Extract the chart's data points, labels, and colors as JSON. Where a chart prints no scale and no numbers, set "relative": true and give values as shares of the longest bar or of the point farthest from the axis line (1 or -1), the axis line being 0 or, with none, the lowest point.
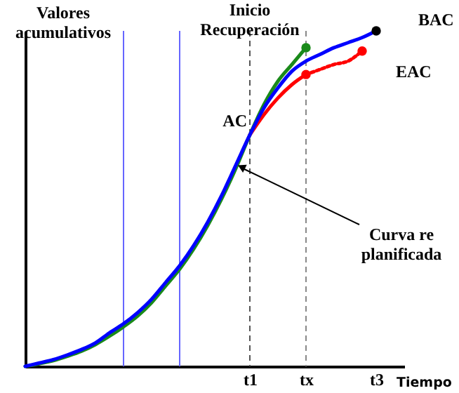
{
  "chart_data": {
    "type": "line",
    "relative": true,
    "xlabel": "Tiempo",
    "ylabel": "Valores acumulativos",
    "categories": [
      null,
      null,
      null,
      null,
      null,
      null,
      null,
      null,
      null,
      null,
      null,
      null,
      null,
      null,
      null,
      null,
      "t1",
      null,
      null,
      null,
      "tx",
      null,
      null,
      null,
      null,
      "t3",
      null,
      null
    ],
    "series": [
      {
        "color": "#1a8a1a",
        "values": [
          0,
          0.008,
          0.017,
          0.03,
          0.045,
          0.065,
          0.09,
          0.118,
          0.15,
          0.19,
          0.24,
          0.29,
          0.35,
          0.42,
          0.5,
          0.59,
          0.69,
          0.78,
          0.85,
          0.9,
          0.95,
          null,
          null,
          null,
          null,
          null,
          null,
          null
        ]
      },
      {
        "color": "#ff0000",
        "values": [
          null,
          null,
          null,
          null,
          null,
          null,
          null,
          null,
          null,
          null,
          null,
          null,
          null,
          null,
          null,
          null,
          0.69,
          0.75,
          0.8,
          0.84,
          0.87,
          null,
          null,
          null,
          null,
          null,
          null,
          null
        ]
      },
      {
        "color": "#ff0000",
        "line_style": "dotted",
        "values": [
          null,
          null,
          null,
          null,
          null,
          null,
          null,
          null,
          null,
          null,
          null,
          null,
          null,
          null,
          null,
          null,
          null,
          null,
          null,
          null,
          0.87,
          0.885,
          0.9,
          0.91,
          0.94,
          null,
          null,
          null
        ]
      },
      {
        "color": "#0000ff",
        "values": [
          0,
          0.01,
          0.02,
          0.034,
          0.05,
          0.07,
          0.1,
          0.127,
          0.16,
          0.2,
          0.25,
          0.3,
          0.36,
          0.43,
          0.51,
          0.6,
          0.69,
          0.77,
          0.83,
          0.88,
          0.91,
          0.93,
          0.95,
          0.965,
          0.98,
          1,
          null,
          null
        ]
      },
      {
        "type": "scatter",
        "marker": "circle",
        "color": "#1a8a1a",
        "values": [
          null,
          null,
          null,
          null,
          null,
          null,
          null,
          null,
          null,
          null,
          null,
          null,
          null,
          null,
          null,
          null,
          null,
          null,
          null,
          null,
          0.95,
          null,
          null,
          null,
          null,
          null,
          null,
          null
        ]
      },
      {
        "type": "scatter",
        "marker": "circle",
        "color": "#ff0000",
        "values": [
          null,
          null,
          null,
          null,
          null,
          null,
          null,
          null,
          null,
          null,
          null,
          null,
          null,
          null,
          null,
          null,
          null,
          null,
          null,
          null,
          0.87,
          null,
          null,
          null,
          0.94,
          null,
          null,
          null
        ]
      },
      {
        "type": "scatter",
        "marker": "circle",
        "color": "#000000",
        "values": [
          null,
          null,
          null,
          null,
          null,
          null,
          null,
          null,
          null,
          null,
          null,
          null,
          null,
          null,
          null,
          null,
          null,
          null,
          null,
          null,
          null,
          null,
          null,
          null,
          null,
          1,
          null,
          null
        ]
      }
    ],
    "ref_lines": [
      {
        "axis": "x",
        "value": "t1",
        "color": "#555555",
        "line_style": "dashed",
        "label": "Inicio Recuperación"
      },
      {
        "axis": "x",
        "value": "tx",
        "color": "#888888",
        "line_style": "dashed"
      }
    ],
    "annotations": [
      "BAC",
      "EAC",
      "AC",
      "Curva re planificada"
    ],
    "marker": "none"
  }
}
